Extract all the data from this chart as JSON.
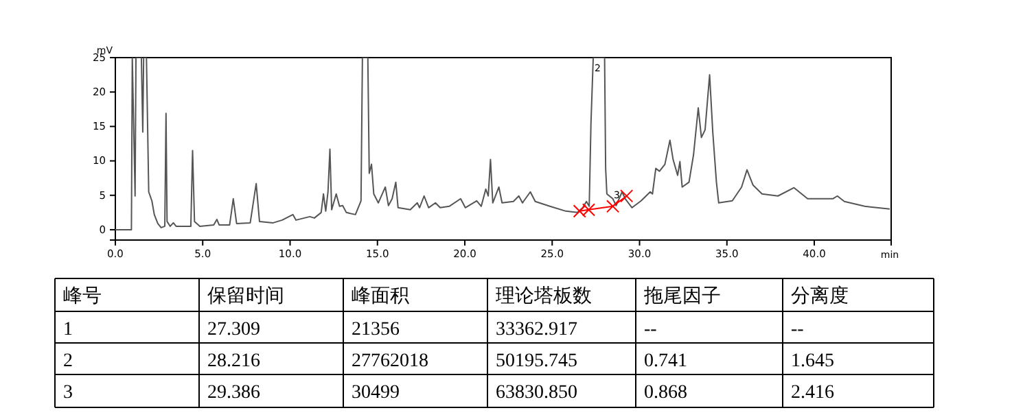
{
  "chart_data": {
    "type": "line",
    "ylabel": "mV",
    "xlabel": "min",
    "xlim": [
      0,
      44.4
    ],
    "ylim": [
      -1.5,
      25
    ],
    "xticks": [
      {
        "value": 0,
        "label": "0.0"
      },
      {
        "value": 5,
        "label": "5.0"
      },
      {
        "value": 10,
        "label": "10.0"
      },
      {
        "value": 15,
        "label": "15.0"
      },
      {
        "value": 20,
        "label": "20.0"
      },
      {
        "value": 25,
        "label": "25.0"
      },
      {
        "value": 30,
        "label": "30.0"
      },
      {
        "value": 35,
        "label": "35.0"
      },
      {
        "value": 40,
        "label": "40.0"
      }
    ],
    "yticks": [
      0,
      5,
      10,
      15,
      20,
      25
    ],
    "grid": false,
    "series": [
      {
        "color": "#555555",
        "marker": "none",
        "x": [
          0,
          0.92,
          0.97,
          1.13,
          1.18,
          1.49,
          1.57,
          1.62,
          1.78,
          1.91,
          2.09,
          2.23,
          2.43,
          2.62,
          2.83,
          2.9,
          2.96,
          3.14,
          3.32,
          3.48,
          4.32,
          4.42,
          4.53,
          4.84,
          5.63,
          5.81,
          5.94,
          6.54,
          6.75,
          6.94,
          7.72,
          8.06,
          8.25,
          9.03,
          9.55,
          10.16,
          10.34,
          11.13,
          11.39,
          11.78,
          11.91,
          12.04,
          12.17,
          12.28,
          12.38,
          12.64,
          12.83,
          13.01,
          13.22,
          13.74,
          14.06,
          14.14,
          14.45,
          14.53,
          14.66,
          14.79,
          15.05,
          15.45,
          15.63,
          15.84,
          16.05,
          16.18,
          16.88,
          17.28,
          17.41,
          17.67,
          17.93,
          18.32,
          18.59,
          19.11,
          19.76,
          20.03,
          20.68,
          20.94,
          21.2,
          21.34,
          21.47,
          21.6,
          21.95,
          22.13,
          22.78,
          23.09,
          23.3,
          23.75,
          24.03,
          24.87,
          25.78,
          26.44,
          26.75,
          26.96,
          27.12,
          27.22,
          27.35,
          28.0,
          28.06,
          28.13,
          28.47,
          28.66,
          29.0,
          29.18,
          29.57,
          30.09,
          30.61,
          30.74,
          30.93,
          31.14,
          31.45,
          31.74,
          31.92,
          32.18,
          32.31,
          32.44,
          32.83,
          33.09,
          33.36,
          33.54,
          33.75,
          34.01,
          34.19,
          34.4,
          34.53,
          35.31,
          35.84,
          36.15,
          36.49,
          37.01,
          37.92,
          38.84,
          39.62,
          41.06,
          41.32,
          41.72,
          42.89,
          44.32
        ],
        "values": [
          0,
          0,
          25,
          4.9,
          25,
          25,
          14.2,
          25,
          25,
          5.5,
          4.2,
          2.2,
          0.9,
          0.3,
          0.5,
          16.9,
          1.2,
          0.5,
          1.0,
          0.5,
          0.5,
          11.5,
          1.2,
          0.5,
          0.7,
          1.5,
          0.7,
          0.7,
          4.5,
          0.9,
          1.0,
          6.7,
          1.2,
          1.0,
          1.4,
          2.2,
          1.4,
          1.9,
          1.7,
          2.5,
          5.2,
          2.7,
          5.5,
          11.7,
          2.9,
          5.2,
          3.4,
          3.5,
          2.5,
          2.2,
          4.2,
          25,
          25,
          8.2,
          9.5,
          5.2,
          3.9,
          6.2,
          3.5,
          4.5,
          6.9,
          3.2,
          2.9,
          3.9,
          3.2,
          4.9,
          3.2,
          3.9,
          3.2,
          3.4,
          4.5,
          3.2,
          4.2,
          3.4,
          5.9,
          4.9,
          10.2,
          3.9,
          6.2,
          3.9,
          4.1,
          4.9,
          3.9,
          5.5,
          4.1,
          3.4,
          2.7,
          2.5,
          3.2,
          4.1,
          3.4,
          15.5,
          25,
          25,
          8.9,
          5.2,
          4.5,
          3.5,
          5.5,
          4.5,
          3.2,
          4.2,
          5.5,
          5.2,
          8.9,
          8.5,
          9.5,
          13.0,
          10.2,
          7.9,
          9.9,
          6.2,
          6.9,
          10.9,
          17.7,
          13.4,
          14.5,
          22.5,
          14.2,
          6.9,
          3.9,
          4.2,
          6.2,
          8.7,
          6.5,
          5.2,
          4.9,
          6.1,
          4.5,
          4.5,
          4.9,
          4.1,
          3.4,
          3.0
        ]
      },
      {
        "color": "#ff0000",
        "marker": "cross",
        "x": [
          26.57,
          27.09,
          28.47,
          29.26
        ],
        "values": [
          2.7,
          2.9,
          3.4,
          4.9
        ]
      }
    ],
    "annotations": [
      {
        "text": "2",
        "x": 27.6,
        "y": 23
      },
      {
        "text": "3",
        "x": 28.7,
        "y": 4.6
      },
      "峰号",
      "保留时间",
      "峰面积",
      "理论塔板数",
      "拖尾因子",
      "分离度",
      "1",
      "27.309",
      "21356",
      "33362.917",
      "--",
      "--",
      "2",
      "28.216",
      "27762018",
      "50195.745",
      "0.741",
      "1.645",
      "3",
      "29.386",
      "30499",
      "63830.850",
      "0.868",
      "2.416"
    ]
  }
}
